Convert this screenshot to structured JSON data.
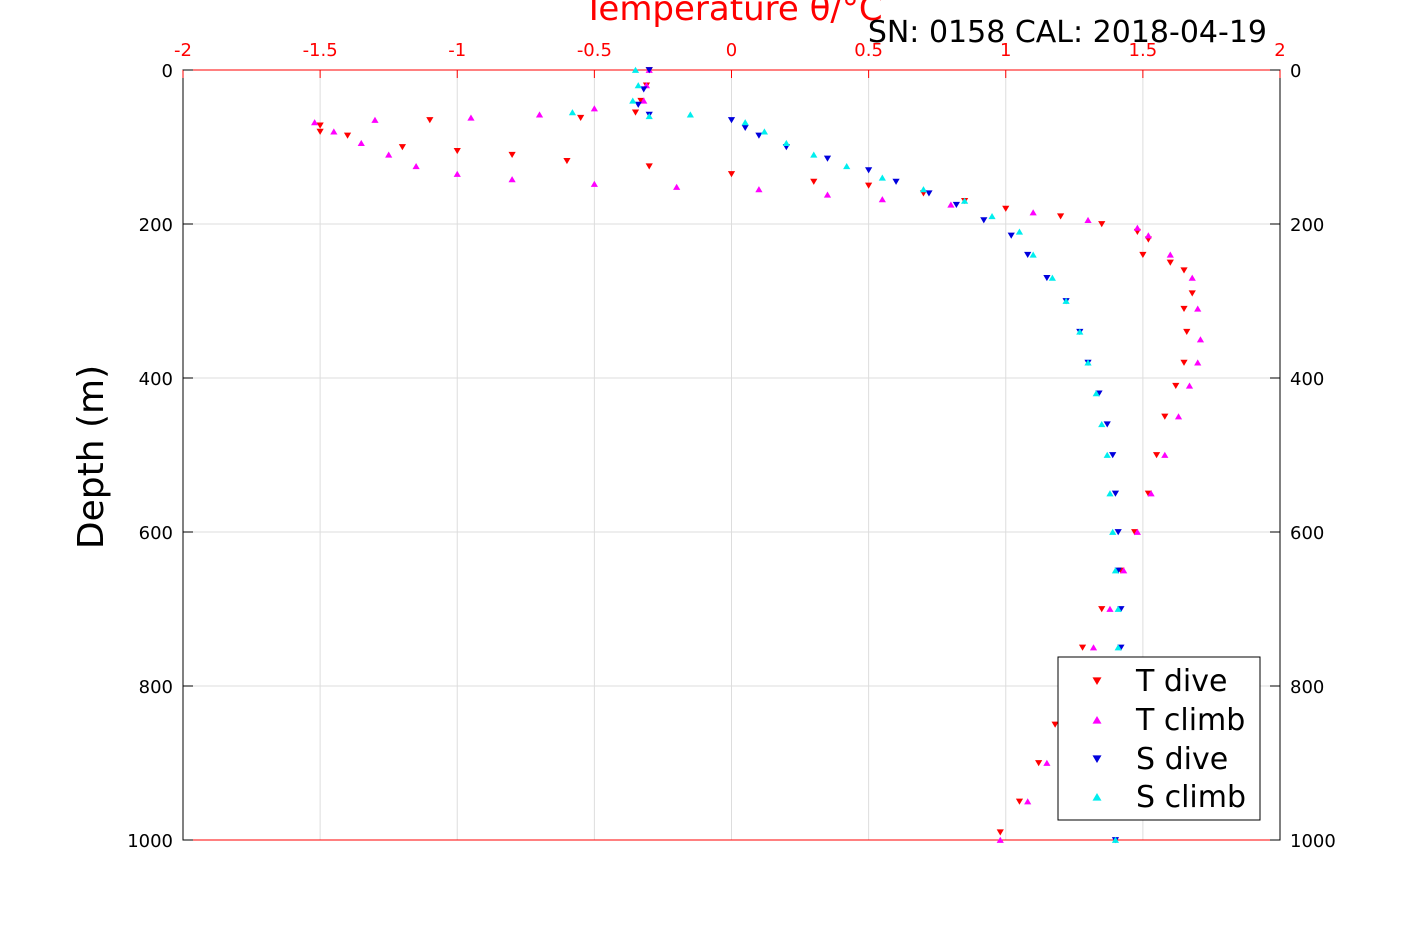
{
  "chart_data": {
    "type": "scatter",
    "title": "Temperature θ/°C",
    "subtitle": "SN: 0158  CAL: 2018-04-19",
    "ylabel": "Depth (m)",
    "xlim": [
      -2,
      2
    ],
    "ylim": [
      0,
      1000
    ],
    "y_inverted": true,
    "x_ticks": [
      "-2",
      "-1.5",
      "-1",
      "-0.5",
      "0",
      "0.5",
      "1",
      "1.5",
      "2"
    ],
    "y_ticks": [
      "0",
      "200",
      "400",
      "600",
      "800",
      "1000"
    ],
    "grid": true,
    "legend_position": "bottom-right",
    "series": [
      {
        "name": "T dive",
        "marker": "triangle-down",
        "color": "#ff0000",
        "points": [
          [
            -0.3,
            0
          ],
          [
            -0.31,
            20
          ],
          [
            -0.33,
            40
          ],
          [
            -0.35,
            55
          ],
          [
            -0.55,
            62
          ],
          [
            -1.1,
            65
          ],
          [
            -1.5,
            72
          ],
          [
            -1.5,
            80
          ],
          [
            -1.4,
            85
          ],
          [
            -1.2,
            100
          ],
          [
            -1.0,
            105
          ],
          [
            -0.8,
            110
          ],
          [
            -0.6,
            118
          ],
          [
            -0.3,
            125
          ],
          [
            0.0,
            135
          ],
          [
            0.3,
            145
          ],
          [
            0.5,
            150
          ],
          [
            0.7,
            160
          ],
          [
            0.85,
            170
          ],
          [
            1.0,
            180
          ],
          [
            1.2,
            190
          ],
          [
            1.35,
            200
          ],
          [
            1.48,
            210
          ],
          [
            1.52,
            220
          ],
          [
            1.5,
            240
          ],
          [
            1.6,
            250
          ],
          [
            1.65,
            260
          ],
          [
            1.68,
            290
          ],
          [
            1.65,
            310
          ],
          [
            1.66,
            340
          ],
          [
            1.65,
            380
          ],
          [
            1.62,
            410
          ],
          [
            1.58,
            450
          ],
          [
            1.55,
            500
          ],
          [
            1.52,
            550
          ],
          [
            1.47,
            600
          ],
          [
            1.42,
            650
          ],
          [
            1.35,
            700
          ],
          [
            1.28,
            750
          ],
          [
            1.24,
            800
          ],
          [
            1.18,
            850
          ],
          [
            1.12,
            900
          ],
          [
            1.05,
            950
          ],
          [
            0.98,
            990
          ]
        ]
      },
      {
        "name": "T climb",
        "marker": "triangle-up",
        "color": "#ff00ff",
        "points": [
          [
            -0.3,
            0
          ],
          [
            -0.31,
            20
          ],
          [
            -0.32,
            40
          ],
          [
            -0.5,
            50
          ],
          [
            -0.7,
            58
          ],
          [
            -0.95,
            62
          ],
          [
            -1.3,
            65
          ],
          [
            -1.52,
            68
          ],
          [
            -1.45,
            80
          ],
          [
            -1.35,
            95
          ],
          [
            -1.25,
            110
          ],
          [
            -1.15,
            125
          ],
          [
            -1.0,
            135
          ],
          [
            -0.8,
            142
          ],
          [
            -0.5,
            148
          ],
          [
            -0.2,
            152
          ],
          [
            0.1,
            155
          ],
          [
            0.35,
            162
          ],
          [
            0.55,
            168
          ],
          [
            0.8,
            175
          ],
          [
            1.1,
            185
          ],
          [
            1.3,
            195
          ],
          [
            1.48,
            205
          ],
          [
            1.52,
            215
          ],
          [
            1.6,
            240
          ],
          [
            1.68,
            270
          ],
          [
            1.7,
            310
          ],
          [
            1.71,
            350
          ],
          [
            1.7,
            380
          ],
          [
            1.67,
            410
          ],
          [
            1.63,
            450
          ],
          [
            1.58,
            500
          ],
          [
            1.53,
            550
          ],
          [
            1.48,
            600
          ],
          [
            1.43,
            650
          ],
          [
            1.38,
            700
          ],
          [
            1.32,
            750
          ],
          [
            1.27,
            800
          ],
          [
            1.21,
            850
          ],
          [
            1.15,
            900
          ],
          [
            1.08,
            950
          ],
          [
            0.98,
            1000
          ]
        ]
      },
      {
        "name": "S dive",
        "marker": "triangle-down",
        "color": "#0000dd",
        "points": [
          [
            -0.3,
            0
          ],
          [
            -0.32,
            25
          ],
          [
            -0.34,
            45
          ],
          [
            -0.3,
            58
          ],
          [
            0.0,
            65
          ],
          [
            0.05,
            75
          ],
          [
            0.1,
            85
          ],
          [
            0.2,
            100
          ],
          [
            0.35,
            115
          ],
          [
            0.5,
            130
          ],
          [
            0.6,
            145
          ],
          [
            0.72,
            160
          ],
          [
            0.82,
            175
          ],
          [
            0.92,
            195
          ],
          [
            1.02,
            215
          ],
          [
            1.08,
            240
          ],
          [
            1.15,
            270
          ],
          [
            1.22,
            300
          ],
          [
            1.27,
            340
          ],
          [
            1.3,
            380
          ],
          [
            1.34,
            420
          ],
          [
            1.37,
            460
          ],
          [
            1.39,
            500
          ],
          [
            1.4,
            550
          ],
          [
            1.41,
            600
          ],
          [
            1.41,
            650
          ],
          [
            1.42,
            700
          ],
          [
            1.42,
            750
          ],
          [
            1.42,
            800
          ],
          [
            1.42,
            850
          ],
          [
            1.41,
            900
          ],
          [
            1.41,
            950
          ],
          [
            1.4,
            1000
          ]
        ]
      },
      {
        "name": "S climb",
        "marker": "triangle-up",
        "color": "#00eeee",
        "points": [
          [
            -0.35,
            0
          ],
          [
            -0.34,
            20
          ],
          [
            -0.36,
            40
          ],
          [
            -0.58,
            55
          ],
          [
            -0.3,
            60
          ],
          [
            -0.15,
            58
          ],
          [
            0.05,
            68
          ],
          [
            0.12,
            80
          ],
          [
            0.2,
            95
          ],
          [
            0.3,
            110
          ],
          [
            0.42,
            125
          ],
          [
            0.55,
            140
          ],
          [
            0.7,
            155
          ],
          [
            0.85,
            170
          ],
          [
            0.95,
            190
          ],
          [
            1.05,
            210
          ],
          [
            1.1,
            240
          ],
          [
            1.17,
            270
          ],
          [
            1.22,
            300
          ],
          [
            1.27,
            340
          ],
          [
            1.3,
            380
          ],
          [
            1.33,
            420
          ],
          [
            1.35,
            460
          ],
          [
            1.37,
            500
          ],
          [
            1.38,
            550
          ],
          [
            1.39,
            600
          ],
          [
            1.4,
            650
          ],
          [
            1.41,
            700
          ],
          [
            1.41,
            750
          ],
          [
            1.41,
            800
          ],
          [
            1.4,
            850
          ],
          [
            1.4,
            900
          ],
          [
            1.4,
            950
          ],
          [
            1.4,
            1000
          ]
        ]
      }
    ]
  }
}
